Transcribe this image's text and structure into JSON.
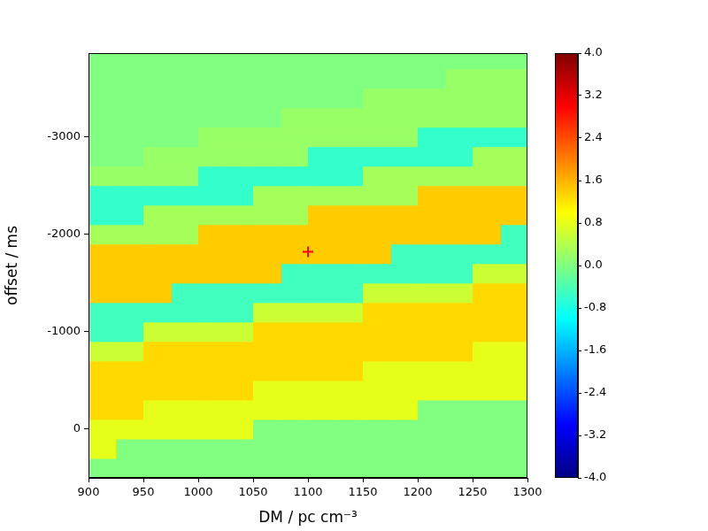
{
  "chart_data": {
    "type": "heatmap",
    "x_label": "DM / pc cm⁻³",
    "y_label": "offset / ms",
    "xlim": [
      900,
      1300
    ],
    "xticks": [
      900,
      950,
      1000,
      1050,
      1100,
      1150,
      1200,
      1250,
      1300
    ],
    "ylim": [
      500,
      -3860
    ],
    "yticks": [
      0,
      -1000,
      -2000,
      -3000
    ],
    "grid": false,
    "x": [
      912.5,
      937.5,
      962.5,
      987.5,
      1012.5,
      1037.5,
      1062.5,
      1087.5,
      1112.5,
      1137.5,
      1162.5,
      1187.5,
      1212.5,
      1237.5,
      1262.5,
      1287.5
    ],
    "y": [
      400,
      200,
      0,
      -200,
      -400,
      -600,
      -800,
      -1000,
      -1200,
      -1400,
      -1600,
      -1800,
      -2000,
      -2200,
      -2400,
      -2600,
      -2800,
      -3000,
      -3200,
      -3400,
      -3600,
      -3800
    ],
    "cells": [
      [
        0,
        0,
        0,
        0,
        0,
        0,
        0,
        0,
        0,
        0,
        0,
        0,
        0,
        0,
        0,
        0
      ],
      [
        0.8,
        0,
        0,
        0,
        0,
        0,
        0,
        0,
        0,
        0,
        0,
        0,
        0,
        0,
        0,
        0
      ],
      [
        0.8,
        0.8,
        0.8,
        0.8,
        0.8,
        0.8,
        0,
        0,
        0,
        0,
        0,
        0,
        0,
        0,
        0,
        0
      ],
      [
        1.3,
        1.3,
        0.8,
        0.8,
        0.8,
        0.8,
        0.8,
        0.8,
        0.8,
        0.8,
        0.8,
        0.8,
        0,
        0,
        0,
        0
      ],
      [
        1.3,
        1.3,
        1.3,
        1.3,
        1.3,
        1.3,
        0.8,
        0.8,
        0.8,
        0.8,
        0.8,
        0.8,
        0.8,
        0.8,
        0.8,
        0.8
      ],
      [
        1.3,
        1.3,
        1.3,
        1.3,
        1.3,
        1.3,
        1.3,
        1.3,
        1.3,
        1.3,
        0.8,
        0.8,
        0.8,
        0.8,
        0.8,
        0.8
      ],
      [
        0.6,
        0.6,
        1.3,
        1.3,
        1.3,
        1.3,
        1.3,
        1.3,
        1.3,
        1.3,
        1.3,
        1.3,
        1.3,
        1.3,
        0.8,
        0.8
      ],
      [
        -0.5,
        -0.5,
        0.6,
        0.6,
        0.6,
        0.6,
        1.3,
        1.3,
        1.3,
        1.3,
        1.3,
        1.3,
        1.3,
        1.3,
        1.3,
        1.3
      ],
      [
        -0.5,
        -0.5,
        -0.5,
        -0.5,
        -0.5,
        -0.5,
        0.6,
        0.6,
        0.6,
        0.6,
        1.3,
        1.3,
        1.3,
        1.3,
        1.3,
        1.3
      ],
      [
        1.4,
        1.4,
        1.4,
        -0.5,
        -0.5,
        -0.5,
        -0.5,
        -0.5,
        -0.5,
        -0.5,
        0.6,
        0.6,
        0.6,
        0.6,
        1.3,
        1.3
      ],
      [
        1.4,
        1.4,
        1.4,
        1.4,
        1.4,
        1.4,
        1.4,
        -0.5,
        -0.5,
        -0.5,
        -0.5,
        -0.5,
        -0.5,
        -0.5,
        0.6,
        0.6
      ],
      [
        1.4,
        1.4,
        1.4,
        1.4,
        1.4,
        1.4,
        1.4,
        1.4,
        1.4,
        1.4,
        1.4,
        -0.5,
        -0.5,
        -0.5,
        -0.5,
        -0.5
      ],
      [
        0.3,
        0.3,
        0.3,
        0.3,
        1.4,
        1.4,
        1.4,
        1.4,
        1.4,
        1.4,
        1.4,
        1.4,
        1.4,
        1.4,
        1.4,
        -0.5
      ],
      [
        -0.6,
        -0.6,
        0.3,
        0.3,
        0.3,
        0.3,
        0.3,
        0.3,
        1.4,
        1.4,
        1.4,
        1.4,
        1.4,
        1.4,
        1.4,
        1.4
      ],
      [
        -0.6,
        -0.6,
        -0.6,
        -0.6,
        -0.6,
        -0.6,
        0.3,
        0.3,
        0.3,
        0.3,
        0.3,
        0.3,
        1.4,
        1.4,
        1.4,
        1.4
      ],
      [
        0.2,
        0.2,
        0.2,
        0.2,
        -0.6,
        -0.6,
        -0.6,
        -0.6,
        -0.6,
        -0.6,
        0.3,
        0.3,
        0.3,
        0.3,
        0.3,
        0.3
      ],
      [
        0,
        0,
        0.2,
        0.2,
        0.2,
        0.2,
        0.2,
        0.2,
        -0.6,
        -0.6,
        -0.6,
        -0.6,
        -0.6,
        -0.6,
        0.3,
        0.3
      ],
      [
        0,
        0,
        0,
        0,
        0.2,
        0.2,
        0.2,
        0.2,
        0.2,
        0.2,
        0.2,
        0.2,
        -0.6,
        -0.6,
        -0.6,
        -0.6
      ],
      [
        0,
        0,
        0,
        0,
        0,
        0,
        0,
        0.2,
        0.2,
        0.2,
        0.2,
        0.2,
        0.2,
        0.2,
        0.2,
        0.2
      ],
      [
        0,
        0,
        0,
        0,
        0,
        0,
        0,
        0,
        0,
        0,
        0.2,
        0.2,
        0.2,
        0.2,
        0.2,
        0.2
      ],
      [
        0,
        0,
        0,
        0,
        0,
        0,
        0,
        0,
        0,
        0,
        0,
        0,
        0,
        0.2,
        0.2,
        0.2
      ],
      [
        0,
        0,
        0,
        0,
        0,
        0,
        0,
        0,
        0,
        0,
        0,
        0,
        0,
        0,
        0,
        0
      ]
    ],
    "colorbar": {
      "lim": [
        -4,
        4
      ],
      "ticks": [
        {
          "value": -4,
          "label": "-4.0"
        },
        {
          "value": -3.2,
          "label": "-3.2"
        },
        {
          "value": -2.4,
          "label": "-2.4"
        },
        {
          "value": -1.6,
          "label": "-1.6"
        },
        {
          "value": -0.8,
          "label": "-0.8"
        },
        {
          "value": 0,
          "label": "0.0"
        },
        {
          "value": 0.8,
          "label": "0.8"
        },
        {
          "value": 1.6,
          "label": "1.6"
        },
        {
          "value": 2.4,
          "label": "2.4"
        },
        {
          "value": 3.2,
          "label": "3.2"
        },
        {
          "value": 4,
          "label": "4.0"
        }
      ]
    },
    "markers": [
      {
        "x": 1100,
        "y": -1820,
        "color": "#ff0000",
        "marker": "plus"
      }
    ]
  }
}
